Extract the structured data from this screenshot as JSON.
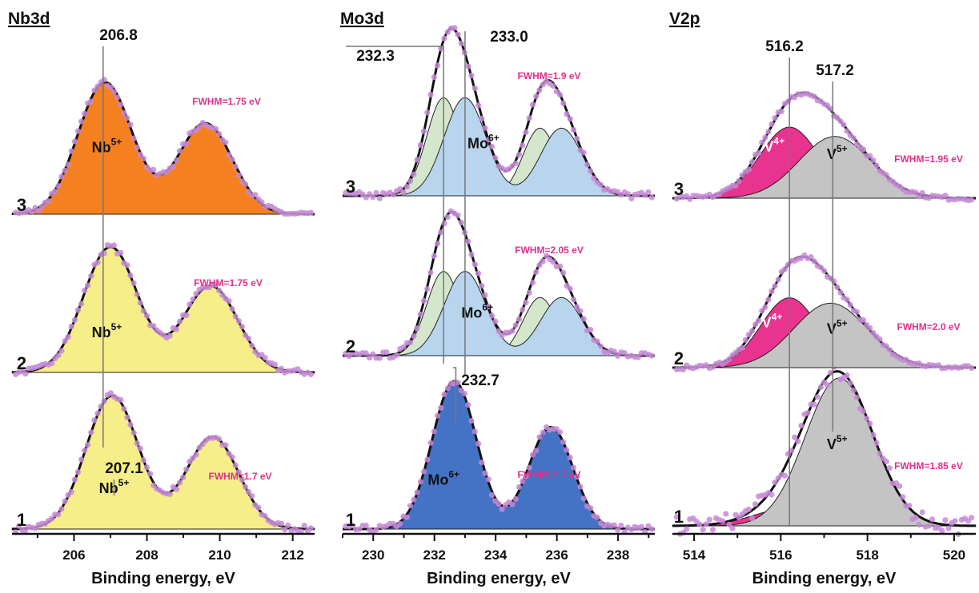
{
  "figure": {
    "fwhm_color": "#e0318c"
  },
  "chart_data": [
    {
      "type": "line",
      "title": "Nb3d",
      "xlabel": "Binding energy, eV",
      "xlim": [
        204.3,
        212.6
      ],
      "xticks": [
        206,
        208,
        210,
        212
      ],
      "xtick_labels": [
        "206",
        "208",
        "210",
        "212"
      ],
      "reversed_axis": false,
      "spectra": [
        {
          "number": "1",
          "fwhm": "FWHM=1.7 eV",
          "species": [
            {
              "base": "Nb",
              "sup": "5+",
              "x": 207.1,
              "y": 0.27,
              "color": "#111111"
            }
          ],
          "envelope": {
            "baseline_left": 0.02,
            "baseline_right": 0.0
          },
          "components": [
            {
              "name": "Nb5+",
              "fill": "#f6ee88",
              "center": 207.05,
              "height": 1.0,
              "width": 1.7,
              "fill_opacity": 1,
              "doublet": {
                "offset": 2.75,
                "ratio": 0.69
              }
            }
          ]
        },
        {
          "number": "2",
          "fwhm": "FWHM=1.75 eV",
          "species": [
            {
              "base": "Nb",
              "sup": "5+",
              "x": 206.9,
              "y": 0.28,
              "color": "#111111"
            }
          ],
          "envelope": {
            "baseline_left": 0.02,
            "baseline_right": 0.0
          },
          "components": [
            {
              "name": "Nb5+",
              "fill": "#f6ee88",
              "center": 207.0,
              "height": 1.0,
              "width": 1.75,
              "fill_opacity": 1,
              "doublet": {
                "offset": 2.75,
                "ratio": 0.69
              }
            }
          ]
        },
        {
          "number": "3",
          "fwhm": "FWHM=1.75 eV",
          "species": [
            {
              "base": "Nb",
              "sup": "5+",
              "x": 206.9,
              "y": 0.47,
              "color": "#111111"
            }
          ],
          "envelope": {
            "baseline_left": 0.02,
            "baseline_right": 0.0
          },
          "components": [
            {
              "name": "Nb5+",
              "fill": "#f5801f",
              "center": 206.85,
              "height": 1.0,
              "width": 1.75,
              "fill_opacity": 1,
              "doublet": {
                "offset": 2.75,
                "ratio": 0.69
              }
            }
          ]
        }
      ],
      "peak_markers": [
        {
          "label": "206.8",
          "x": 206.8,
          "spectrum": 2
        },
        {
          "label": "207.1",
          "x": 207.1,
          "spectrum": 0
        }
      ]
    },
    {
      "type": "line",
      "title": "Mo3d",
      "xlabel": "Binding energy, eV",
      "xlim": [
        229.0,
        239.2
      ],
      "xticks": [
        230,
        232,
        234,
        236,
        238
      ],
      "xtick_labels": [
        "230",
        "232",
        "234",
        "236",
        "238"
      ],
      "reversed_axis": false,
      "spectra": [
        {
          "number": "1",
          "fwhm": "FWHM=1.7 eV",
          "species": [
            {
              "base": "Mo",
              "sup": "6+",
              "x": 232.3,
              "y": 0.3,
              "color": "#111111"
            }
          ],
          "envelope": {
            "baseline_left": 0.0,
            "baseline_right": 0.0
          },
          "components": [
            {
              "name": "Mo6+",
              "fill": "#4472c4",
              "center": 232.65,
              "height": 1.0,
              "width": 1.7,
              "fill_opacity": 1,
              "doublet": {
                "offset": 3.15,
                "ratio": 0.69
              }
            }
          ]
        },
        {
          "number": "2",
          "fwhm": "FWHM=2.05 eV",
          "species": [
            {
              "base": "Mo",
              "sup": "6+",
              "x": 233.4,
              "y": 0.28,
              "color": "#111111"
            }
          ],
          "envelope": {
            "baseline_left": 0.0,
            "baseline_right": 0.0
          },
          "components": [
            {
              "name": "Mo a",
              "fill": "#d4e7cc",
              "center": 232.3,
              "height": 0.62,
              "width": 1.3,
              "fill_opacity": 1,
              "doublet": {
                "offset": 3.15,
                "ratio": 0.69
              }
            },
            {
              "name": "Mo b",
              "fill": "#b9d5ee",
              "center": 233.0,
              "height": 0.62,
              "width": 1.6,
              "fill_opacity": 1,
              "doublet": {
                "offset": 3.15,
                "ratio": 0.69
              }
            }
          ]
        },
        {
          "number": "3",
          "fwhm": "FWHM=1.9 eV",
          "species": [
            {
              "base": "Mo",
              "sup": "6+",
              "x": 233.6,
              "y": 0.3,
              "color": "#111111"
            }
          ],
          "envelope": {
            "baseline_left": 0.0,
            "baseline_right": 0.0
          },
          "components": [
            {
              "name": "Mo a",
              "fill": "#d4e7cc",
              "center": 232.3,
              "height": 0.62,
              "width": 1.3,
              "fill_opacity": 1,
              "doublet": {
                "offset": 3.15,
                "ratio": 0.69
              }
            },
            {
              "name": "Mo b",
              "fill": "#b9d5ee",
              "center": 233.0,
              "height": 0.62,
              "width": 1.6,
              "fill_opacity": 1,
              "doublet": {
                "offset": 3.15,
                "ratio": 0.69
              }
            }
          ]
        }
      ],
      "peak_markers": [
        {
          "label": "232.3",
          "x": 232.3,
          "spectrum": 2
        },
        {
          "label": "233.0",
          "x": 233.0,
          "spectrum": 2
        },
        {
          "label": "232.7",
          "x": 232.7,
          "spectrum": 0
        }
      ]
    },
    {
      "type": "line",
      "title": "V2p",
      "xlabel": "Binding energy, eV",
      "xlim": [
        513.5,
        520.5
      ],
      "xticks": [
        514,
        516,
        518,
        520
      ],
      "xtick_labels": [
        "514",
        "516",
        "518",
        "520"
      ],
      "reversed_axis": false,
      "spectra": [
        {
          "number": "1",
          "fwhm": "FWHM=1.85 eV",
          "species": [
            {
              "base": "V",
              "sup": "5+",
              "x": 517.3,
              "y": 0.52,
              "color": "#111111"
            }
          ],
          "envelope": {
            "baseline_left": 0.0,
            "baseline_right": 0.0
          },
          "components": [
            {
              "name": "V4+",
              "fill": "#e8338f",
              "center": 516.2,
              "height": 0.12,
              "width": 1.9,
              "fill_opacity": 1
            },
            {
              "name": "V5+",
              "fill": "#c4c4c4",
              "center": 517.35,
              "height": 1.0,
              "width": 1.85,
              "fill_opacity": 1
            }
          ]
        },
        {
          "number": "2",
          "fwhm": "FWHM=2.0 eV",
          "species": [
            {
              "base": "V",
              "sup": "4+",
              "x": 515.8,
              "y": 0.45,
              "color": "#ffffff"
            },
            {
              "base": "V",
              "sup": "5+",
              "x": 517.3,
              "y": 0.38,
              "color": "#111111"
            }
          ],
          "envelope": {
            "baseline_left": 0.0,
            "baseline_right": 0.0
          },
          "components": [
            {
              "name": "V4+",
              "fill": "#e8338f",
              "center": 516.2,
              "height": 0.78,
              "width": 1.55,
              "fill_opacity": 1
            },
            {
              "name": "V5+",
              "fill": "#c4c4c4",
              "center": 517.15,
              "height": 0.72,
              "width": 2.0,
              "fill_opacity": 1
            }
          ]
        },
        {
          "number": "3",
          "fwhm": "FWHM=1.95 eV",
          "species": [
            {
              "base": "V",
              "sup": "4+",
              "x": 515.85,
              "y": 0.5,
              "color": "#ffffff"
            },
            {
              "base": "V",
              "sup": "5+",
              "x": 517.3,
              "y": 0.42,
              "color": "#111111"
            }
          ],
          "envelope": {
            "baseline_left": 0.0,
            "baseline_right": 0.0
          },
          "components": [
            {
              "name": "V4+",
              "fill": "#e8338f",
              "center": 516.2,
              "height": 0.76,
              "width": 1.6,
              "fill_opacity": 1
            },
            {
              "name": "V5+",
              "fill": "#c4c4c4",
              "center": 517.25,
              "height": 0.66,
              "width": 1.95,
              "fill_opacity": 1
            }
          ]
        }
      ],
      "peak_markers": [
        {
          "label": "516.2",
          "x": 516.2,
          "spectrum": 2
        },
        {
          "label": "517.2",
          "x": 517.2,
          "spectrum": 2
        }
      ]
    }
  ]
}
